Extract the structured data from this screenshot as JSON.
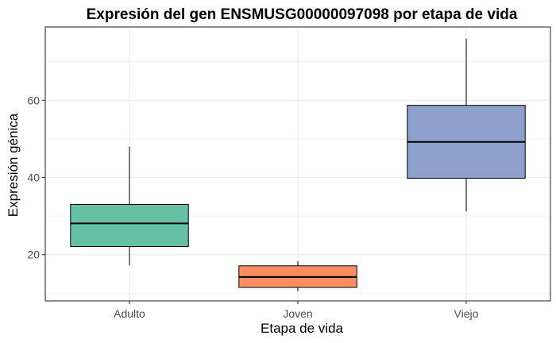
{
  "chart_data": {
    "type": "boxplot",
    "title": "Expresión del gen ENSMUSG00000097098 por etapa de vida",
    "xlabel": "Etapa de vida",
    "ylabel": "Expresión génica",
    "ylim": [
      8,
      79
    ],
    "yticks": [
      20,
      40,
      60
    ],
    "grid": true,
    "legend": "none",
    "categories": [
      "Adulto",
      "Joven",
      "Viejo"
    ],
    "boxes": [
      {
        "category": "Adulto",
        "min": 17.2,
        "q1": 22.1,
        "median": 28.1,
        "q3": 33.0,
        "max": 48.0,
        "color": "#66c2a5"
      },
      {
        "category": "Joven",
        "min": 10.5,
        "q1": 11.5,
        "median": 14.2,
        "q3": 17.1,
        "max": 18.3,
        "color": "#fc8d62"
      },
      {
        "category": "Viejo",
        "min": 31.2,
        "q1": 39.8,
        "median": 49.2,
        "q3": 58.7,
        "max": 76.0,
        "color": "#8da0cb"
      }
    ]
  }
}
